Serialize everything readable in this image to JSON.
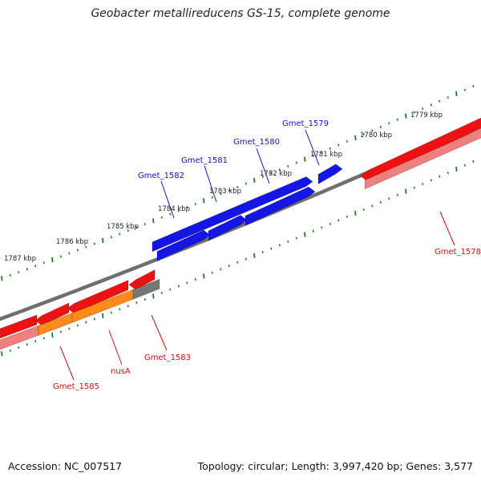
{
  "title": "Geobacter metallireducens GS-15, complete genome",
  "footer": {
    "accession": "Accession: NC_007517",
    "topology": "Topology: circular; Length: 3,997,420 bp; Genes: 3,577"
  },
  "colors": {
    "backbone": "#808080",
    "tick": "#1e7e1e",
    "plus_strand_label": "#0000cc",
    "minus_strand_label": "#cc0000",
    "blue_gene": "#1515e6",
    "red_gene": "#ee1111",
    "pink_gene": "#ee8080",
    "orange_gene": "#ff8c1a",
    "gray_gene": "#777777"
  },
  "scale_labels": [
    "1779 kbp",
    "1780 kbp",
    "1781 kbp",
    "1782 kbp",
    "1783 kbp",
    "1784 kbp",
    "1785 kbp",
    "1786 kbp",
    "1787 kbp"
  ],
  "genes_plus": [
    "Gmet_1579",
    "Gmet_1580",
    "Gmet_1581",
    "Gmet_1582"
  ],
  "genes_minus": [
    "Gmet_1578",
    "Gmet_1583",
    "nusA",
    "Gmet_1585"
  ]
}
